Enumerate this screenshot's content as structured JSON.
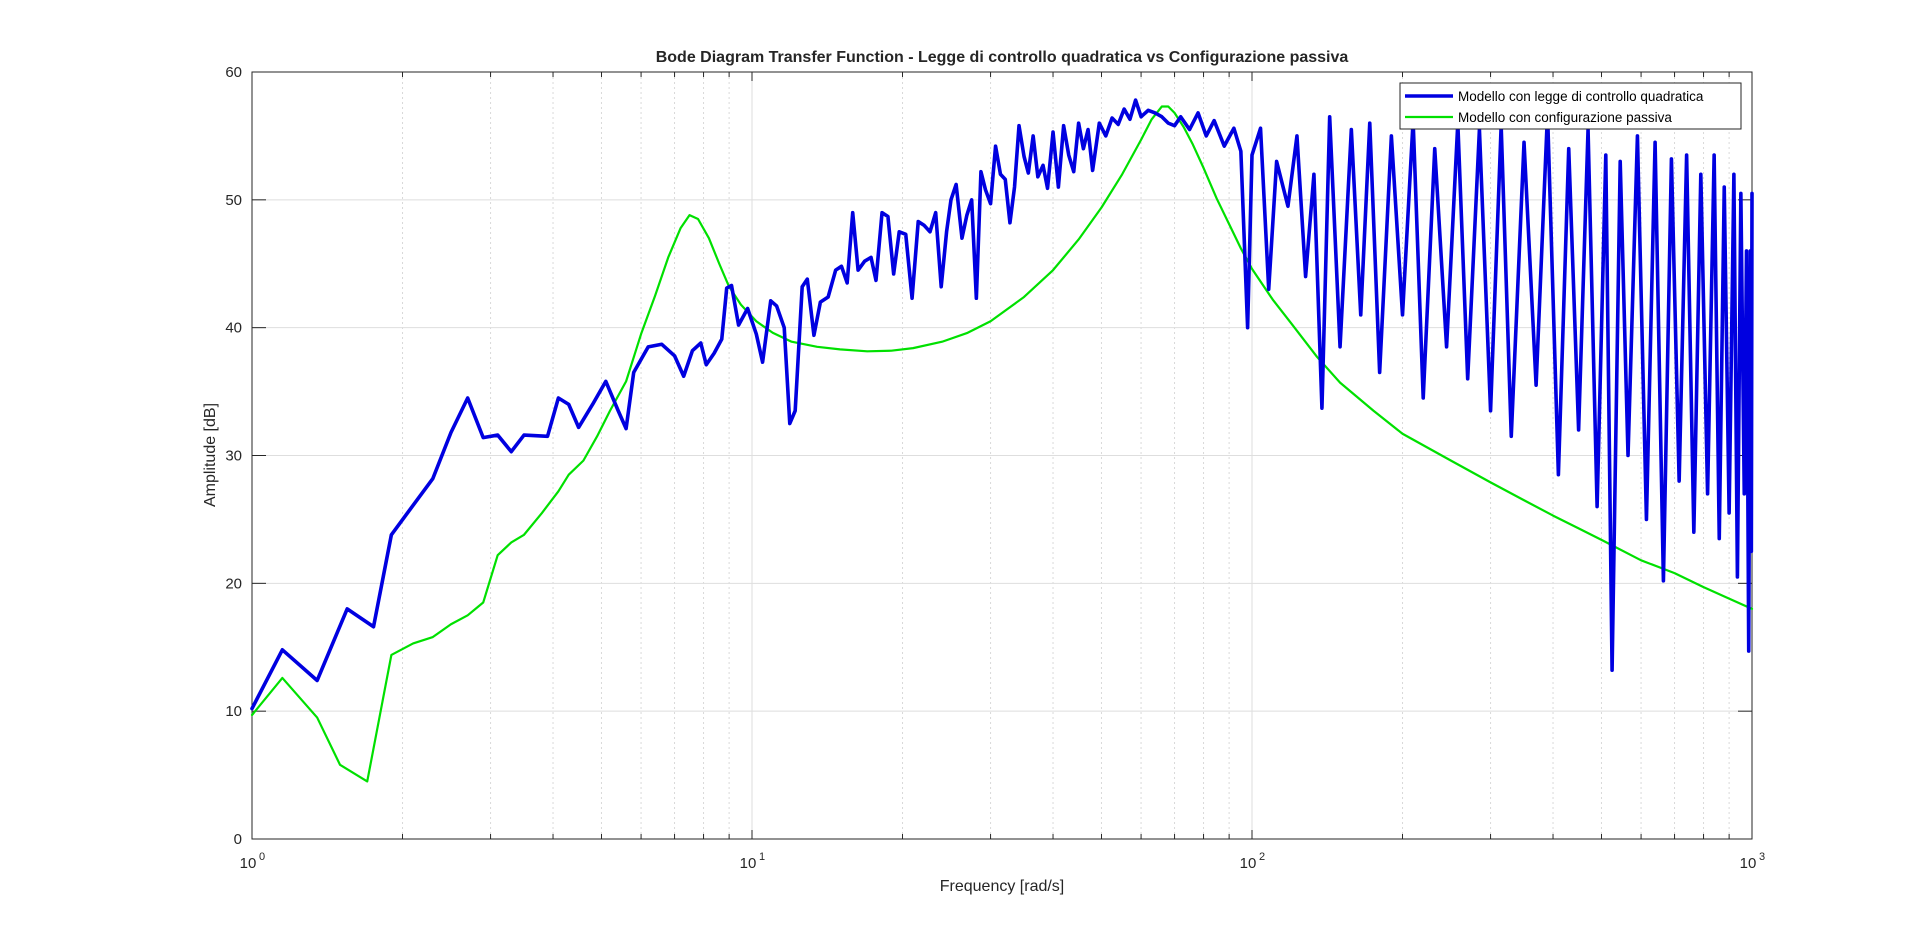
{
  "chart_data": {
    "type": "line",
    "title": "Bode Diagram Transfer Function - Legge di controllo quadratica vs Configurazione passiva",
    "xlabel": "Frequency [rad/s]",
    "ylabel": "Amplitude [dB]",
    "xscale": "log",
    "xlim": [
      1,
      1000
    ],
    "ylim": [
      0,
      60
    ],
    "grid": "on (major and minor)",
    "legend_position": "top-right",
    "x_ticks": [
      {
        "base": "10",
        "exp": "0"
      },
      {
        "base": "10",
        "exp": "1"
      },
      {
        "base": "10",
        "exp": "2"
      },
      {
        "base": "10",
        "exp": "3"
      }
    ],
    "y_ticks": [
      "0",
      "10",
      "20",
      "30",
      "40",
      "50",
      "60"
    ],
    "series": [
      {
        "name": "Modello con legge di controllo quadratica",
        "color": "#0000e0",
        "line_width": "thick",
        "points": [
          [
            1.0,
            10.2
          ],
          [
            1.15,
            14.8
          ],
          [
            1.35,
            12.4
          ],
          [
            1.55,
            18.0
          ],
          [
            1.75,
            16.6
          ],
          [
            1.9,
            23.8
          ],
          [
            2.3,
            28.2
          ],
          [
            2.5,
            31.8
          ],
          [
            2.7,
            34.5
          ],
          [
            2.9,
            31.4
          ],
          [
            3.1,
            31.6
          ],
          [
            3.3,
            30.3
          ],
          [
            3.5,
            31.6
          ],
          [
            3.9,
            31.5
          ],
          [
            4.1,
            34.5
          ],
          [
            4.3,
            34.0
          ],
          [
            4.5,
            32.2
          ],
          [
            4.8,
            34.0
          ],
          [
            5.1,
            35.8
          ],
          [
            5.4,
            33.5
          ],
          [
            5.6,
            32.1
          ],
          [
            5.8,
            36.5
          ],
          [
            6.2,
            38.5
          ],
          [
            6.6,
            38.7
          ],
          [
            7.0,
            37.8
          ],
          [
            7.3,
            36.2
          ],
          [
            7.6,
            38.2
          ],
          [
            7.9,
            38.8
          ],
          [
            8.1,
            37.1
          ],
          [
            8.4,
            38.0
          ],
          [
            8.7,
            39.1
          ],
          [
            8.9,
            43.1
          ],
          [
            9.1,
            43.3
          ],
          [
            9.4,
            40.2
          ],
          [
            9.8,
            41.5
          ],
          [
            10.2,
            39.5
          ],
          [
            10.5,
            37.3
          ],
          [
            10.9,
            42.1
          ],
          [
            11.2,
            41.7
          ],
          [
            11.6,
            40.0
          ],
          [
            11.9,
            32.5
          ],
          [
            12.2,
            33.5
          ],
          [
            12.6,
            43.2
          ],
          [
            12.9,
            43.8
          ],
          [
            13.3,
            39.4
          ],
          [
            13.7,
            42.0
          ],
          [
            14.2,
            42.4
          ],
          [
            14.7,
            44.5
          ],
          [
            15.1,
            44.8
          ],
          [
            15.5,
            43.5
          ],
          [
            15.9,
            49.0
          ],
          [
            16.3,
            44.5
          ],
          [
            16.8,
            45.2
          ],
          [
            17.3,
            45.5
          ],
          [
            17.7,
            43.7
          ],
          [
            18.2,
            49.0
          ],
          [
            18.7,
            48.7
          ],
          [
            19.2,
            44.2
          ],
          [
            19.7,
            47.5
          ],
          [
            20.3,
            47.3
          ],
          [
            20.9,
            42.3
          ],
          [
            21.5,
            48.3
          ],
          [
            22.1,
            48.0
          ],
          [
            22.7,
            47.5
          ],
          [
            23.3,
            49.0
          ],
          [
            23.9,
            43.2
          ],
          [
            24.5,
            47.5
          ],
          [
            25.0,
            50.0
          ],
          [
            25.6,
            51.2
          ],
          [
            26.3,
            47.0
          ],
          [
            26.9,
            48.8
          ],
          [
            27.5,
            50.0
          ],
          [
            28.1,
            42.3
          ],
          [
            28.7,
            52.2
          ],
          [
            29.3,
            50.8
          ],
          [
            30.0,
            49.7
          ],
          [
            30.7,
            54.2
          ],
          [
            31.4,
            52.0
          ],
          [
            32.1,
            51.6
          ],
          [
            32.8,
            48.2
          ],
          [
            33.5,
            51.0
          ],
          [
            34.2,
            55.8
          ],
          [
            35.0,
            53.4
          ],
          [
            35.7,
            52.1
          ],
          [
            36.5,
            55.0
          ],
          [
            37.3,
            51.8
          ],
          [
            38.2,
            52.7
          ],
          [
            39.0,
            50.9
          ],
          [
            40.0,
            55.3
          ],
          [
            41.0,
            51.0
          ],
          [
            42.0,
            55.8
          ],
          [
            43.0,
            53.5
          ],
          [
            44.0,
            52.2
          ],
          [
            45.0,
            56.0
          ],
          [
            46.0,
            54.0
          ],
          [
            47.0,
            55.5
          ],
          [
            48.0,
            52.3
          ],
          [
            49.5,
            56.0
          ],
          [
            51.0,
            55.0
          ],
          [
            52.5,
            56.4
          ],
          [
            54.0,
            55.9
          ],
          [
            55.5,
            57.1
          ],
          [
            57.0,
            56.3
          ],
          [
            58.5,
            57.8
          ],
          [
            60.0,
            56.5
          ],
          [
            62.0,
            57.0
          ],
          [
            64.0,
            56.8
          ],
          [
            66.0,
            56.5
          ],
          [
            68.0,
            56.0
          ],
          [
            70.0,
            55.8
          ],
          [
            72.0,
            56.5
          ],
          [
            75.0,
            55.5
          ],
          [
            78.0,
            56.8
          ],
          [
            81.0,
            55.0
          ],
          [
            84.0,
            56.2
          ],
          [
            88.0,
            54.2
          ],
          [
            92.0,
            55.6
          ],
          [
            95.0,
            53.8
          ],
          [
            98.0,
            40.0
          ],
          [
            100.0,
            53.5
          ],
          [
            104.0,
            55.6
          ],
          [
            108.0,
            43.0
          ],
          [
            112.0,
            53.0
          ],
          [
            118.0,
            49.5
          ],
          [
            123.0,
            55.0
          ],
          [
            128.0,
            44.0
          ],
          [
            133.0,
            52.0
          ],
          [
            138.0,
            33.7
          ],
          [
            143.0,
            56.5
          ],
          [
            150.0,
            38.5
          ],
          [
            158.0,
            55.5
          ],
          [
            165.0,
            41.0
          ],
          [
            172.0,
            56.0
          ],
          [
            180.0,
            36.5
          ],
          [
            190.0,
            55.0
          ],
          [
            200.0,
            41.0
          ],
          [
            210.0,
            56.2
          ],
          [
            220.0,
            34.5
          ],
          [
            232.0,
            54.0
          ],
          [
            245.0,
            38.5
          ],
          [
            258.0,
            56.0
          ],
          [
            270.0,
            36.0
          ],
          [
            285.0,
            55.5
          ],
          [
            300.0,
            33.5
          ],
          [
            315.0,
            55.8
          ],
          [
            330.0,
            31.5
          ],
          [
            350.0,
            54.5
          ],
          [
            370.0,
            35.5
          ],
          [
            390.0,
            56.8
          ],
          [
            410.0,
            28.5
          ],
          [
            430.0,
            54.0
          ],
          [
            450.0,
            32.0
          ],
          [
            470.0,
            55.5
          ],
          [
            490.0,
            26.0
          ],
          [
            510.0,
            53.5
          ],
          [
            525.0,
            13.2
          ],
          [
            545.0,
            53.0
          ],
          [
            565.0,
            30.0
          ],
          [
            590.0,
            55.0
          ],
          [
            615.0,
            25.0
          ],
          [
            640.0,
            54.5
          ],
          [
            665.0,
            20.2
          ],
          [
            690.0,
            53.2
          ],
          [
            715.0,
            28.0
          ],
          [
            740.0,
            53.5
          ],
          [
            765.0,
            24.0
          ],
          [
            790.0,
            52.0
          ],
          [
            815.0,
            27.0
          ],
          [
            840.0,
            53.5
          ],
          [
            860.0,
            23.5
          ],
          [
            880.0,
            51.0
          ],
          [
            900.0,
            25.5
          ],
          [
            920.0,
            52.0
          ],
          [
            935.0,
            20.5
          ],
          [
            950.0,
            50.5
          ],
          [
            965.0,
            27.0
          ],
          [
            975.0,
            46.0
          ],
          [
            985.0,
            14.7
          ],
          [
            992.0,
            46.0
          ],
          [
            997.0,
            22.5
          ],
          [
            1000.0,
            50.5
          ]
        ]
      },
      {
        "name": "Modello con configurazione passiva",
        "color": "#00e000",
        "line_width": "thin",
        "points": [
          [
            1.0,
            9.7
          ],
          [
            1.15,
            12.6
          ],
          [
            1.35,
            9.5
          ],
          [
            1.5,
            5.8
          ],
          [
            1.7,
            4.5
          ],
          [
            1.9,
            14.4
          ],
          [
            2.1,
            15.3
          ],
          [
            2.3,
            15.8
          ],
          [
            2.5,
            16.8
          ],
          [
            2.7,
            17.5
          ],
          [
            2.9,
            18.5
          ],
          [
            3.1,
            22.2
          ],
          [
            3.3,
            23.2
          ],
          [
            3.5,
            23.8
          ],
          [
            3.8,
            25.5
          ],
          [
            4.1,
            27.2
          ],
          [
            4.3,
            28.5
          ],
          [
            4.6,
            29.6
          ],
          [
            4.9,
            31.5
          ],
          [
            5.2,
            33.5
          ],
          [
            5.6,
            35.8
          ],
          [
            6.0,
            39.5
          ],
          [
            6.4,
            42.5
          ],
          [
            6.8,
            45.5
          ],
          [
            7.2,
            47.8
          ],
          [
            7.5,
            48.8
          ],
          [
            7.8,
            48.5
          ],
          [
            8.2,
            47.0
          ],
          [
            8.6,
            45.0
          ],
          [
            9.0,
            43.2
          ],
          [
            9.5,
            41.8
          ],
          [
            10.2,
            40.5
          ],
          [
            11.0,
            39.6
          ],
          [
            12.0,
            38.9
          ],
          [
            13.5,
            38.5
          ],
          [
            15.0,
            38.3
          ],
          [
            17.0,
            38.15
          ],
          [
            19.0,
            38.2
          ],
          [
            21.0,
            38.4
          ],
          [
            24.0,
            38.9
          ],
          [
            27.0,
            39.6
          ],
          [
            30.0,
            40.5
          ],
          [
            35.0,
            42.4
          ],
          [
            40.0,
            44.5
          ],
          [
            45.0,
            46.9
          ],
          [
            50.0,
            49.4
          ],
          [
            55.0,
            52.0
          ],
          [
            60.0,
            54.7
          ],
          [
            63.0,
            56.3
          ],
          [
            66.0,
            57.3
          ],
          [
            68.0,
            57.3
          ],
          [
            70.0,
            56.8
          ],
          [
            73.0,
            55.7
          ],
          [
            76.0,
            54.4
          ],
          [
            80.0,
            52.5
          ],
          [
            85.0,
            50.1
          ],
          [
            90.0,
            48.1
          ],
          [
            95.0,
            46.2
          ],
          [
            100.0,
            44.6
          ],
          [
            110.0,
            42.2
          ],
          [
            120.0,
            40.3
          ],
          [
            135.0,
            37.7
          ],
          [
            150.0,
            35.7
          ],
          [
            175.0,
            33.5
          ],
          [
            200.0,
            31.7
          ],
          [
            250.0,
            29.6
          ],
          [
            300.0,
            27.9
          ],
          [
            350.0,
            26.5
          ],
          [
            400.0,
            25.3
          ],
          [
            450.0,
            24.3
          ],
          [
            500.0,
            23.4
          ],
          [
            600.0,
            21.8
          ],
          [
            700.0,
            20.8
          ],
          [
            800.0,
            19.7
          ],
          [
            900.0,
            18.8
          ],
          [
            1000.0,
            18.0
          ]
        ]
      }
    ]
  }
}
